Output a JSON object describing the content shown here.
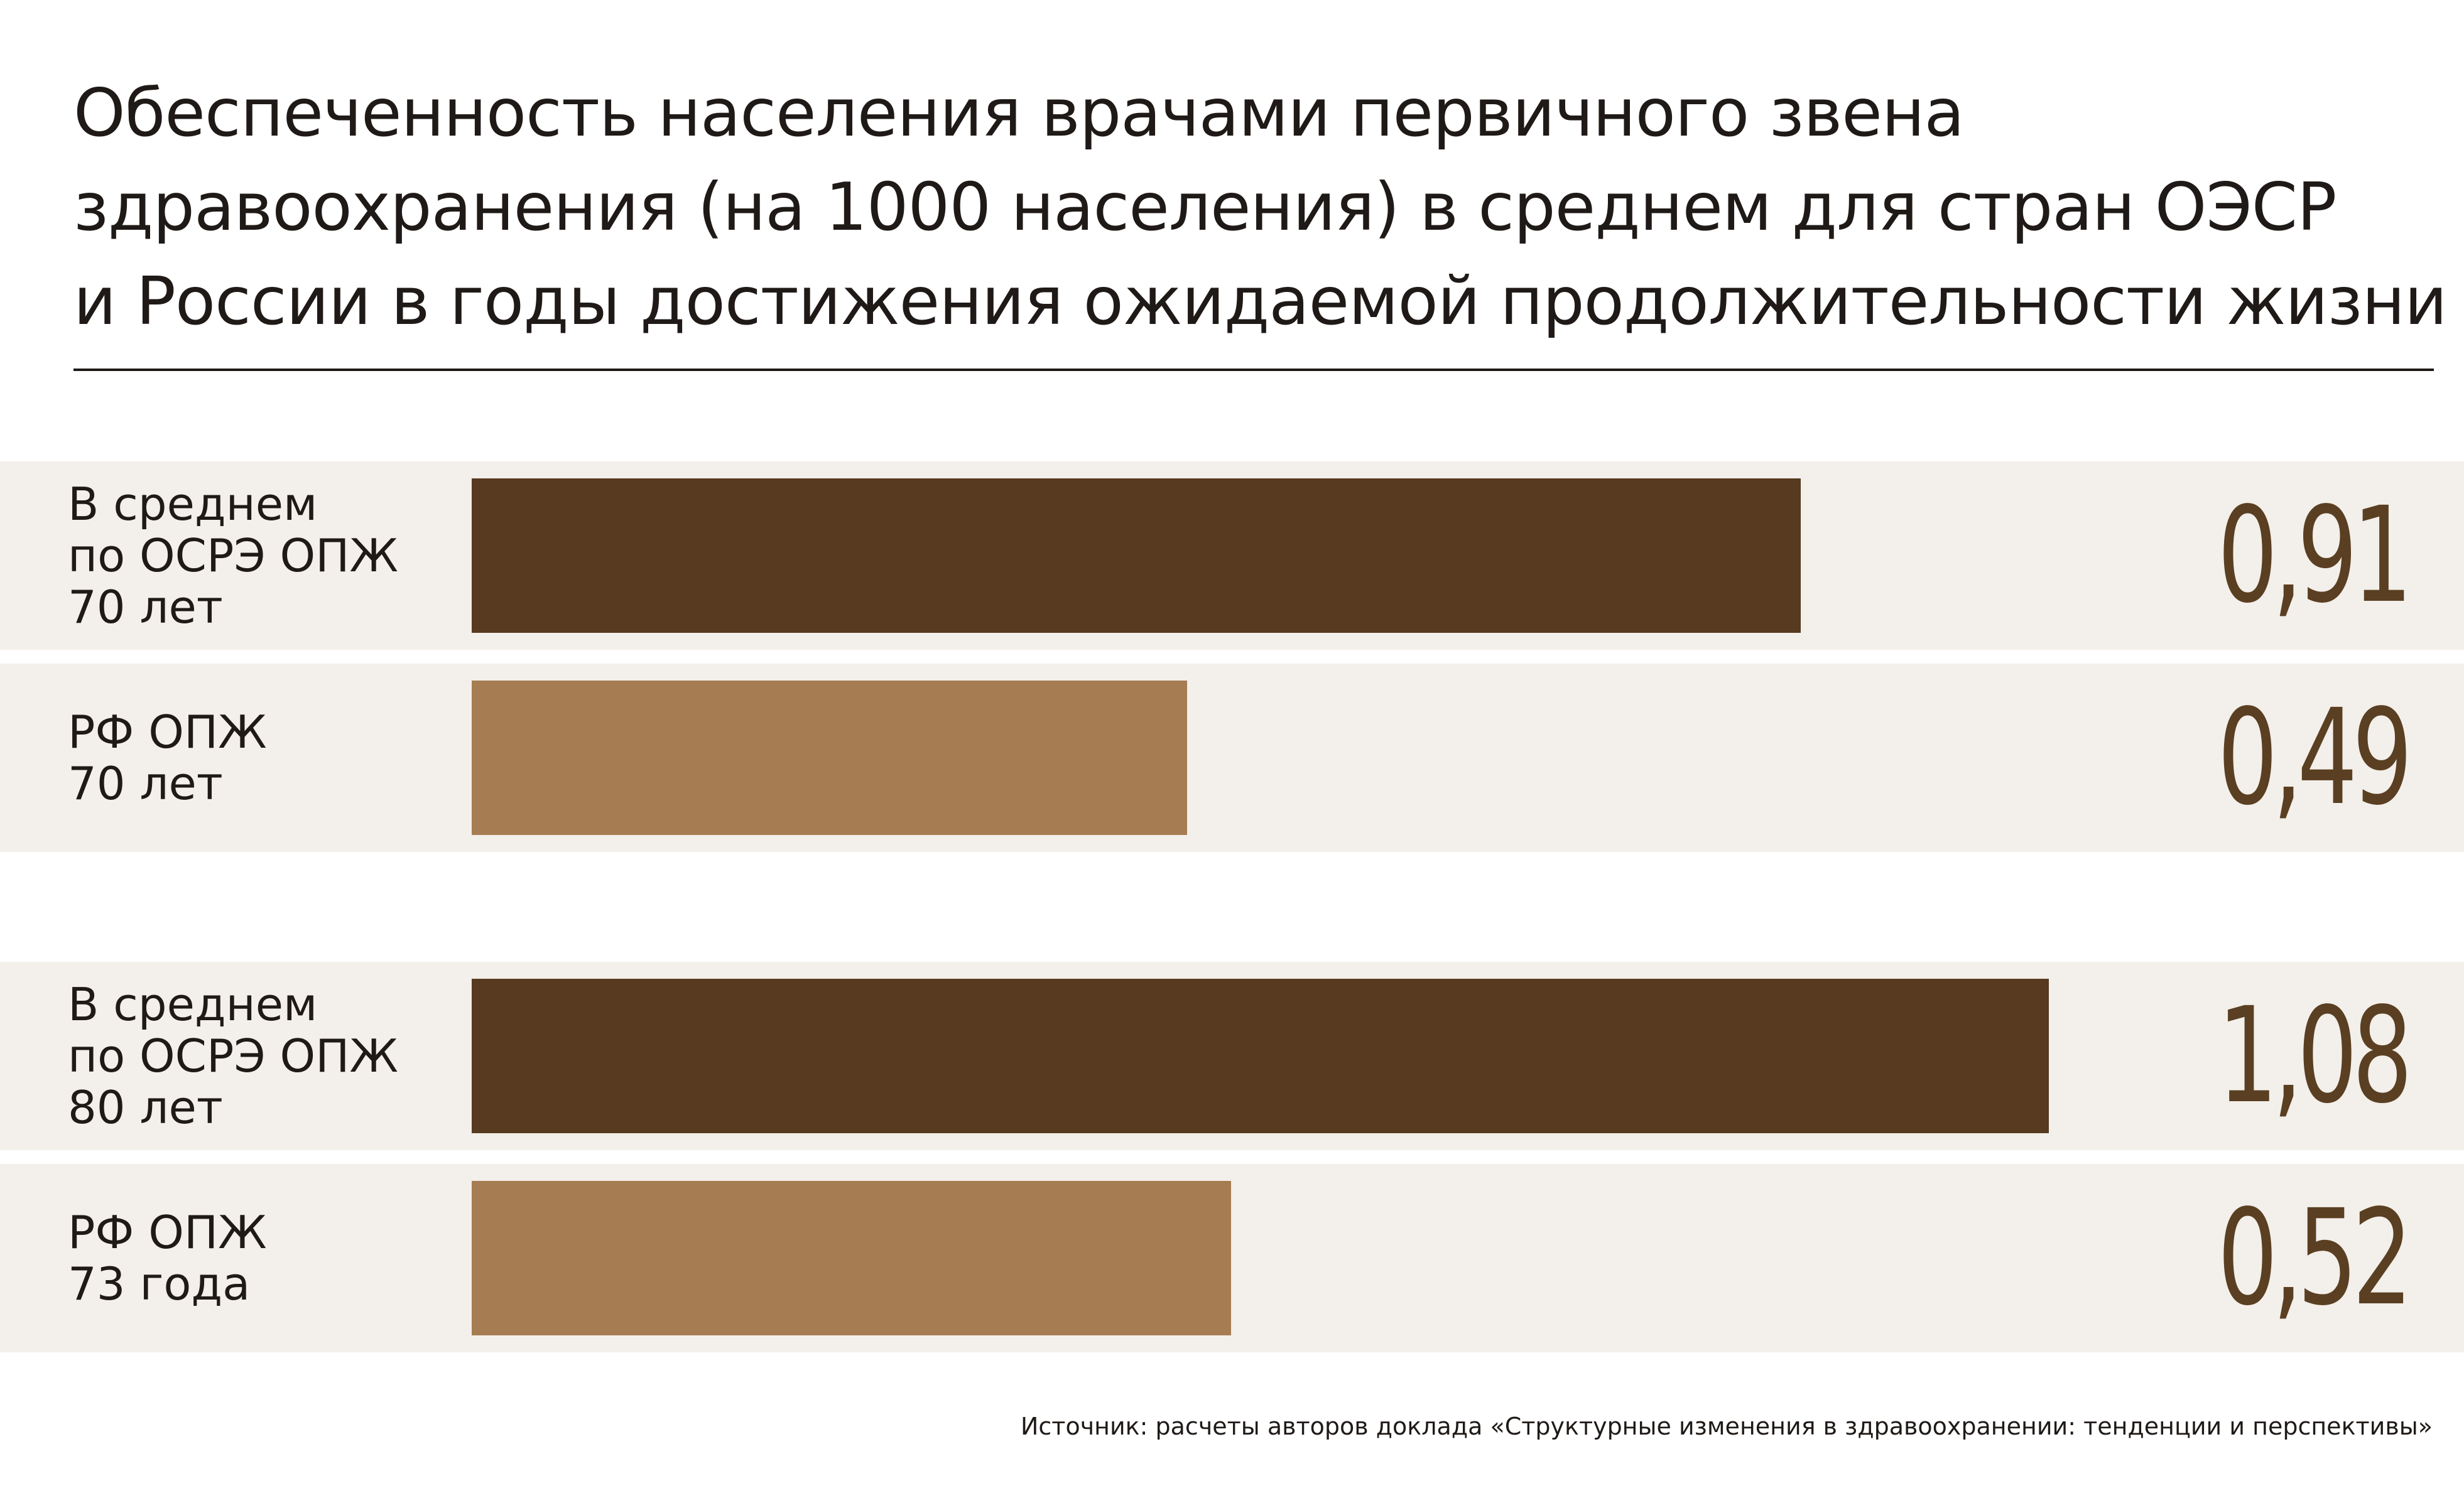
{
  "title_lines": [
    "Обеспеченность населения врачами первичного звена",
    "здравоохранения (на 1000 населения) в среднем для стран ОЭСР",
    "и России в годы достижения ожидаемой продолжительности жизни"
  ],
  "source": "Источник: расчеты авторов доклада «Структурные изменения в здравоохранении: тенденции и перспективы»",
  "colors": {
    "oecd_bar": "#573a20",
    "russia_bar": "#a67c52",
    "row_background": "#f3efea",
    "value_text": "#5a3f22"
  },
  "chart_data": {
    "type": "bar",
    "orientation": "horizontal",
    "xlim": [
      0,
      1.2
    ],
    "bars": [
      {
        "label_lines": [
          "В среднем",
          "по ОСРЭ ОПЖ",
          "70 лет"
        ],
        "value": 0.91,
        "value_label": "0,91",
        "group": "oecd"
      },
      {
        "label_lines": [
          "РФ ОПЖ",
          "70 лет"
        ],
        "value": 0.49,
        "value_label": "0,49",
        "group": "russia"
      },
      {
        "label_lines": [
          "В среднем",
          "по ОСРЭ ОПЖ",
          "80 лет"
        ],
        "value": 1.08,
        "value_label": "1,08",
        "group": "oecd"
      },
      {
        "label_lines": [
          "РФ ОПЖ",
          "73 года"
        ],
        "value": 0.52,
        "value_label": "0,52",
        "group": "russia"
      }
    ]
  }
}
